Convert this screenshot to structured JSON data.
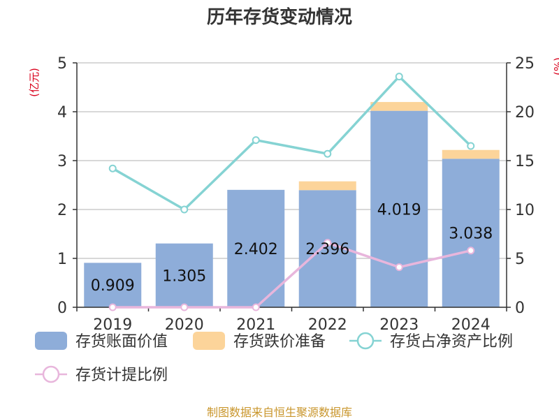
{
  "title": "历年存货变动情况",
  "unit_left": "(亿元)",
  "unit_right": "(%)",
  "source": "制图数据来自恒生聚源数据库",
  "colors": {
    "book_value": "#8eadd9",
    "provision": "#fcd49a",
    "net_asset_ratio": "#85d3d3",
    "provision_ratio": "#e8b6dc"
  },
  "chart_data": {
    "type": "bar",
    "categories": [
      "2019",
      "2020",
      "2021",
      "2022",
      "2023",
      "2024"
    ],
    "series": [
      {
        "name": "存货账面价值",
        "type": "bar",
        "axis": "left",
        "values": [
          0.909,
          1.305,
          2.402,
          2.396,
          4.019,
          3.038
        ],
        "labels": [
          "0.909",
          "1.305",
          "2.402",
          "2.396",
          "4.019",
          "3.038"
        ]
      },
      {
        "name": "存货跌价准备",
        "type": "bar-stacked",
        "axis": "left",
        "values": [
          0,
          0,
          0,
          0.18,
          0.18,
          0.18
        ]
      },
      {
        "name": "存货占净资产比例",
        "type": "line",
        "axis": "right",
        "values": [
          14.2,
          10.0,
          17.1,
          15.7,
          23.6,
          16.5
        ]
      },
      {
        "name": "存货计提比例",
        "type": "line",
        "axis": "right",
        "values": [
          0,
          0,
          0,
          6.6,
          4.1,
          5.8
        ]
      }
    ],
    "ylim_left": [
      0,
      5
    ],
    "yticks_left": [
      "0",
      "1",
      "2",
      "3",
      "4",
      "5"
    ],
    "ylim_right": [
      0,
      25
    ],
    "yticks_right": [
      "0",
      "5",
      "10",
      "15",
      "20",
      "25"
    ],
    "grid": true,
    "legend": "bottom"
  }
}
